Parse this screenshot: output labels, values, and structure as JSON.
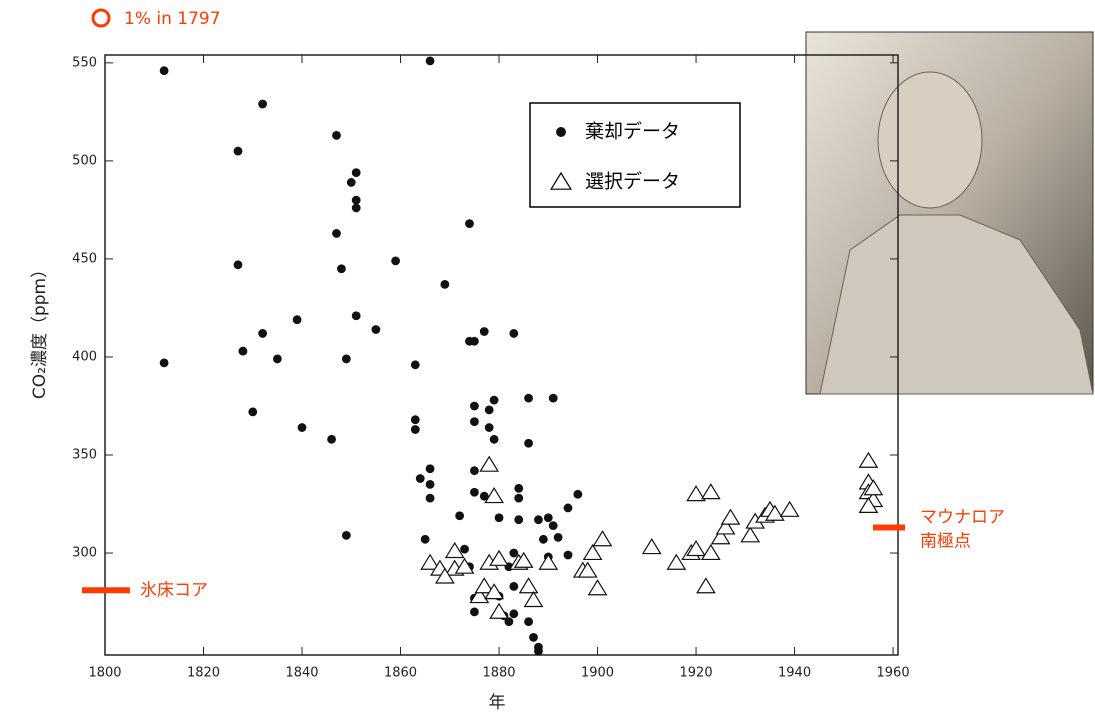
{
  "chart_data": {
    "type": "scatter",
    "note_text": "1% in 1797",
    "x_label": "年",
    "y_label": "CO₂濃度（ppm）",
    "xlim": [
      1800,
      1961
    ],
    "ylim": [
      248,
      554
    ],
    "xticks": [
      1800,
      1820,
      1840,
      1860,
      1880,
      1900,
      1920,
      1940,
      1960
    ],
    "yticks": [
      300,
      350,
      400,
      450,
      500,
      550
    ],
    "series": [
      {
        "name": "棄却データ",
        "color": "#111111",
        "marker": "circle",
        "x": [
          1812,
          1866,
          1832,
          1847,
          1827,
          1851,
          1850,
          1851,
          1851,
          1847,
          1874,
          1827,
          1848,
          1859,
          1869,
          1839,
          1851,
          1855,
          1832,
          1883,
          1877,
          1874,
          1875,
          1828,
          1835,
          1849,
          1812,
          1863,
          1886,
          1891,
          1879,
          1875,
          1878,
          1830,
          1863,
          1875,
          1878,
          1840,
          1863,
          1879,
          1846,
          1886,
          1866,
          1864,
          1875,
          1866,
          1884,
          1875,
          1896,
          1866,
          1877,
          1849,
          1884,
          1872,
          1880,
          1884,
          1890,
          1894,
          1888,
          1891,
          1892,
          1865,
          1873,
          1889,
          1883,
          1890,
          1894,
          1874,
          1882,
          1875,
          1875,
          1880,
          1883,
          1881,
          1883,
          1882,
          1886,
          1887,
          1888,
          1888
        ],
        "values": [
          546,
          551,
          529,
          513,
          505,
          494,
          489,
          480,
          476,
          463,
          468,
          447,
          445,
          449,
          437,
          419,
          421,
          414,
          412,
          412,
          413,
          408,
          408,
          403,
          399,
          399,
          397,
          396,
          379,
          379,
          378,
          375,
          373,
          372,
          368,
          367,
          364,
          364,
          363,
          358,
          358,
          356,
          343,
          338,
          342,
          335,
          333,
          331,
          330,
          328,
          329,
          309,
          328,
          319,
          318,
          317,
          318,
          323,
          317,
          314,
          308,
          307,
          302,
          307,
          300,
          298,
          299,
          293,
          293,
          277,
          270,
          278,
          283,
          268,
          269,
          265,
          265,
          257,
          252,
          250
        ]
      },
      {
        "name": "選択データ",
        "color": "#111111",
        "marker": "triangle",
        "x": [
          1878,
          1879,
          1866,
          1871,
          1868,
          1871,
          1873,
          1869,
          1876,
          1877,
          1879,
          1878,
          1880,
          1884,
          1885,
          1880,
          1886,
          1887,
          1890,
          1897,
          1898,
          1899,
          1901,
          1900,
          1911,
          1916,
          1919,
          1920,
          1920,
          1923,
          1922,
          1923,
          1925,
          1926,
          1927,
          1931,
          1932,
          1934,
          1935,
          1936,
          1939,
          1955,
          1955,
          1955,
          1956,
          1956,
          1955
        ],
        "values": [
          345,
          329,
          295,
          301,
          292,
          292,
          293,
          288,
          278,
          283,
          280,
          295,
          297,
          295,
          296,
          270,
          283,
          276,
          295,
          291,
          291,
          300,
          307,
          282,
          303,
          295,
          300,
          302,
          330,
          331,
          283,
          300,
          308,
          313,
          318,
          309,
          316,
          319,
          322,
          320,
          322,
          347,
          336,
          331,
          327,
          333,
          324
        ]
      }
    ],
    "legend": "upper right",
    "annotations": [
      {
        "lines": [
          "氷床コア"
        ],
        "y": 281,
        "side": "left"
      },
      {
        "lines": [
          "マウナロア",
          "南極点"
        ],
        "y": 313,
        "side": "right"
      }
    ]
  }
}
